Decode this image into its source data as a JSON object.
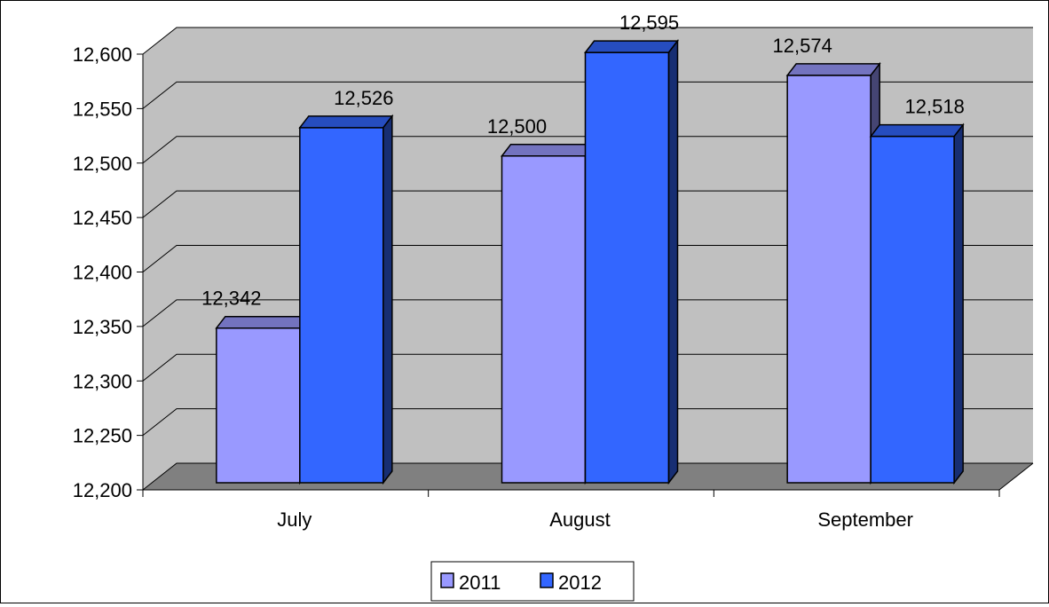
{
  "chart_data": {
    "type": "bar",
    "style": "3d-clustered-column",
    "categories": [
      "July",
      "August",
      "September"
    ],
    "series": [
      {
        "name": "2011",
        "values": [
          12342,
          12500,
          12574
        ],
        "color": "#9999ff",
        "data_labels": [
          "12,342",
          "12,500",
          "12,574"
        ]
      },
      {
        "name": "2012",
        "values": [
          12526,
          12595,
          12518
        ],
        "color": "#3366ff",
        "data_labels": [
          "12,526",
          "12,595",
          "12,518"
        ]
      }
    ],
    "ylim": [
      12200,
      12600
    ],
    "y_ticks": [
      12200,
      12250,
      12300,
      12350,
      12400,
      12450,
      12500,
      12550,
      12600
    ],
    "y_tick_labels": [
      "12,200",
      "12,250",
      "12,300",
      "12,350",
      "12,400",
      "12,450",
      "12,500",
      "12,550",
      "12,600"
    ],
    "grid": true,
    "legend_position": "bottom",
    "colors": {
      "wall": "#c0c0c0",
      "floor": "#808080"
    }
  }
}
